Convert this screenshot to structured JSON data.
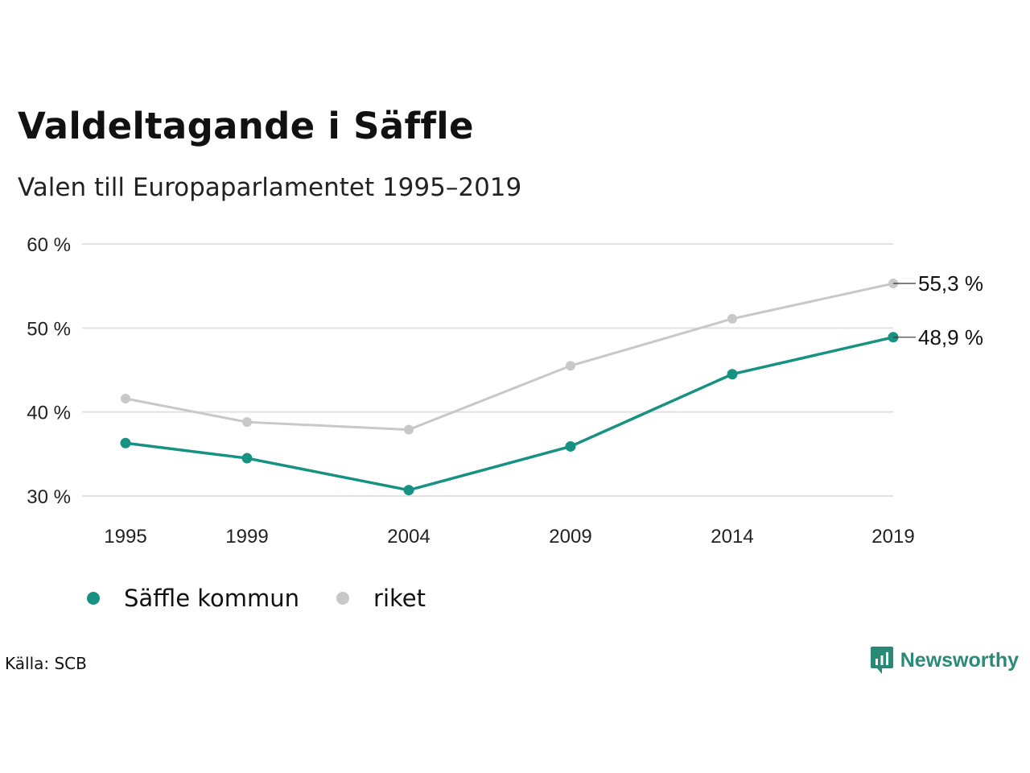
{
  "title": "Valdeltagande i Säffle",
  "subtitle": "Valen till Europaparlamentet 1995–2019",
  "source": "Källa: SCB",
  "brand": {
    "name": "Newsworthy",
    "icon": "newsworthy-logo-icon",
    "color": "#2a8a78"
  },
  "legend": [
    {
      "label": "Säffle kommun",
      "color": "#179182"
    },
    {
      "label": "riket",
      "color": "#c8c8c8"
    }
  ],
  "chart_data": {
    "type": "line",
    "title": "Valdeltagande i Säffle",
    "subtitle": "Valen till Europaparlamentet 1995–2019",
    "categories": [
      "1995",
      "1999",
      "2004",
      "2009",
      "2014",
      "2019"
    ],
    "series": [
      {
        "name": "Säffle kommun",
        "color": "#179182",
        "values": [
          36.3,
          34.5,
          30.7,
          35.9,
          44.5,
          48.9
        ],
        "end_label": "48,9 %"
      },
      {
        "name": "riket",
        "color": "#c8c8c8",
        "values": [
          41.6,
          38.8,
          37.9,
          45.5,
          51.1,
          55.3
        ],
        "end_label": "55,3 %"
      }
    ],
    "y_ticks": [
      30,
      40,
      50,
      60
    ],
    "y_tick_labels": [
      "30 %",
      "40 %",
      "50 %",
      "60 %"
    ],
    "ylim": [
      30,
      60
    ],
    "grid": true,
    "legend_position": "bottom-left"
  }
}
